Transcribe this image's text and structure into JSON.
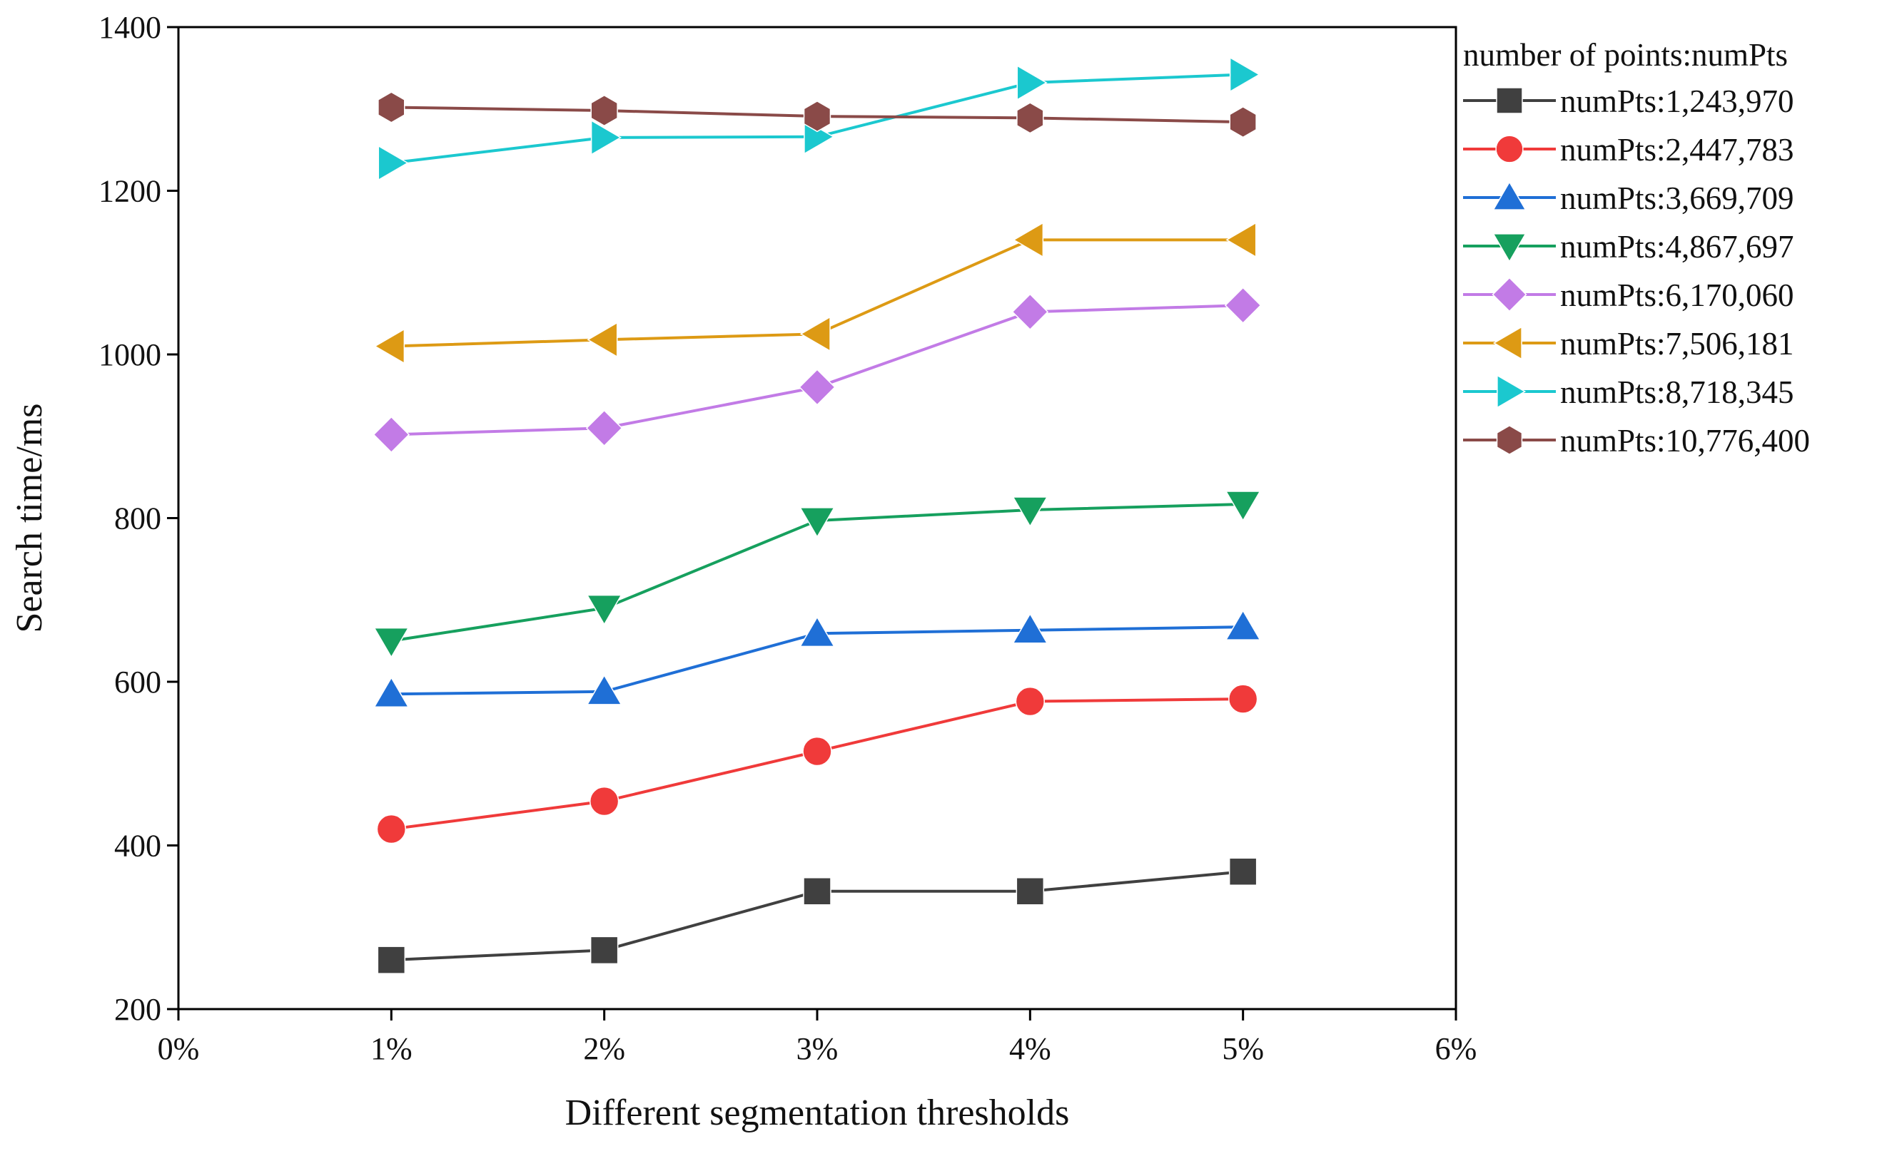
{
  "chart_data": {
    "type": "line",
    "title": "",
    "xlabel": "Different segmentation thresholds",
    "ylabel": "Search time/ms",
    "x_ticks": [
      "0%",
      "1%",
      "2%",
      "3%",
      "4%",
      "5%",
      "6%"
    ],
    "y_ticks": [
      "200",
      "400",
      "600",
      "800",
      "1000",
      "1200",
      "1400"
    ],
    "xlim": [
      0,
      6
    ],
    "ylim": [
      200,
      1400
    ],
    "x": [
      1,
      2,
      3,
      4,
      5
    ],
    "grid": false,
    "legend_position": "right",
    "legend_title": "number of points:numPts",
    "series": [
      {
        "name": "numPts:1,243,970",
        "color": "#404040",
        "marker": "square",
        "values": [
          260,
          272,
          344,
          344,
          368
        ]
      },
      {
        "name": "numPts:2,447,783",
        "color": "#f03a3a",
        "marker": "circle",
        "values": [
          420,
          454,
          515,
          576,
          579
        ]
      },
      {
        "name": "numPts:3,669,709",
        "color": "#1f6fd6",
        "marker": "triangle-up",
        "values": [
          585,
          588,
          659,
          663,
          667
        ]
      },
      {
        "name": "numPts:4,867,697",
        "color": "#16a05e",
        "marker": "triangle-down",
        "values": [
          650,
          690,
          797,
          810,
          817
        ]
      },
      {
        "name": "numPts:6,170,060",
        "color": "#c27be6",
        "marker": "diamond",
        "values": [
          902,
          910,
          960,
          1052,
          1060
        ]
      },
      {
        "name": "numPts:7,506,181",
        "color": "#dd9a14",
        "marker": "triangle-left",
        "values": [
          1010,
          1018,
          1025,
          1140,
          1140
        ]
      },
      {
        "name": "numPts:8,718,345",
        "color": "#1bc8cf",
        "marker": "triangle-right",
        "values": [
          1234,
          1265,
          1266,
          1332,
          1342
        ]
      },
      {
        "name": "numPts:10,776,400",
        "color": "#8a4a48",
        "marker": "hexagon",
        "values": [
          1302,
          1298,
          1291,
          1289,
          1284
        ]
      }
    ]
  }
}
